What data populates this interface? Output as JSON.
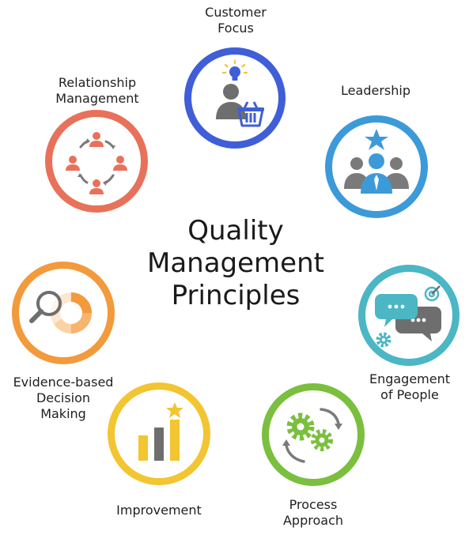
{
  "title": {
    "line1": "Quality",
    "line2": "Management",
    "line3": "Principles"
  },
  "principles": [
    {
      "id": "customer-focus",
      "line1": "Customer",
      "line2": "Focus",
      "color": "#3f5ed8",
      "icon": "customer-basket-icon"
    },
    {
      "id": "leadership",
      "line1": "Leadership",
      "color": "#3d9ad9",
      "icon": "leader-team-star-icon"
    },
    {
      "id": "engagement",
      "line1": "Engagement",
      "line2": "of People",
      "color": "#4bb6c4",
      "icon": "chat-bubbles-gear-icon"
    },
    {
      "id": "process",
      "line1": "Process",
      "line2": "Approach",
      "color": "#7bbf3e",
      "icon": "gears-cycle-icon"
    },
    {
      "id": "improvement",
      "line1": "Improvement",
      "color": "#f2c531",
      "icon": "bar-chart-star-icon"
    },
    {
      "id": "evidence",
      "line1": "Evidence-based",
      "line2": "Decision",
      "line3": "Making",
      "color": "#f29a3c",
      "icon": "magnifier-donut-chart-icon"
    },
    {
      "id": "relationship",
      "line1": "Relationship",
      "line2": "Management",
      "color": "#e8715a",
      "icon": "people-cycle-icon"
    }
  ]
}
